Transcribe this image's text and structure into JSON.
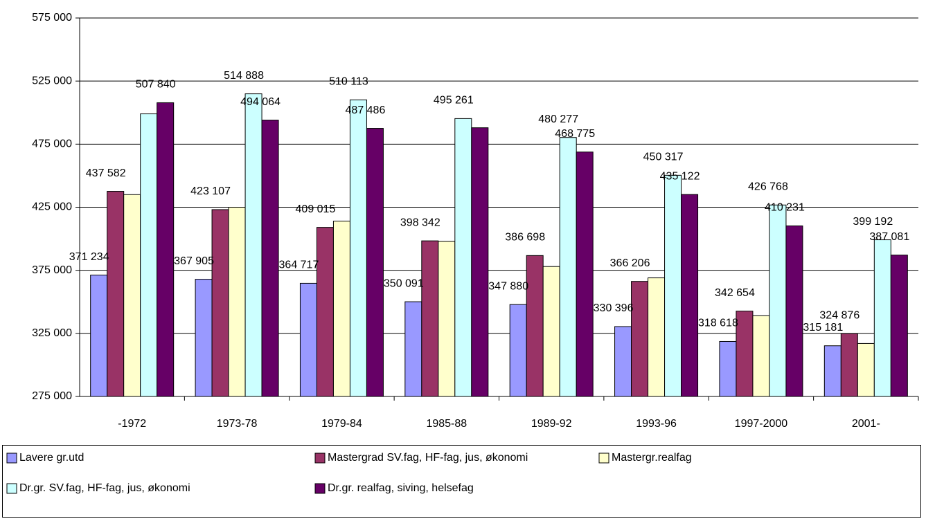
{
  "chart_data": {
    "type": "bar",
    "categories": [
      "-1972",
      "1973-78",
      "1979-84",
      "1985-88",
      "1989-92",
      "1993-96",
      "1997-2000",
      "2001-"
    ],
    "series": [
      {
        "name": "Lavere gr.utd",
        "color": "#9999ff",
        "values": [
          371234,
          367905,
          364717,
          350091,
          347880,
          330396,
          318618,
          315181
        ],
        "value_labels": [
          "371 234",
          "367 905",
          "364 717",
          "350 091",
          "347 880",
          "330 396",
          "318 618",
          "315 181"
        ]
      },
      {
        "name": "Mastergrad SV.fag, HF-fag, jus, økonomi",
        "color": "#993366",
        "values": [
          437582,
          423107,
          409015,
          398342,
          386698,
          366206,
          342654,
          324876
        ],
        "value_labels": [
          "437 582",
          "423 107",
          "409 015",
          "398 342",
          "386 698",
          "366 206",
          "342 654",
          "324 876"
        ]
      },
      {
        "name": "Mastergr.realfag",
        "color": "#ffffcc",
        "values": [
          435000,
          425000,
          414000,
          398000,
          378000,
          369000,
          339000,
          317000
        ]
      },
      {
        "name": "Dr.gr. SV.fag, HF-fag, jus, økonomi",
        "color": "#ccffff",
        "values": [
          499000,
          514888,
          510113,
          495261,
          480277,
          450317,
          426768,
          399192
        ],
        "value_labels": [
          null,
          "514 888",
          "510 113",
          "495 261",
          "480 277",
          "450 317",
          "426 768",
          "399 192"
        ]
      },
      {
        "name": "Dr.gr. realfag, siving, helsefag",
        "color": "#660066",
        "values": [
          507840,
          494064,
          487486,
          488000,
          468775,
          435122,
          410231,
          387081
        ],
        "value_labels": [
          "507 840",
          "494 064",
          "487 486",
          null,
          "468 775",
          "435 122",
          "410 231",
          "387 081"
        ]
      }
    ],
    "ylim": [
      275000,
      575000
    ],
    "yticks": [
      {
        "value": 275000,
        "label": "275 000"
      },
      {
        "value": 325000,
        "label": "325 000"
      },
      {
        "value": 375000,
        "label": "375 000"
      },
      {
        "value": 425000,
        "label": "425 000"
      },
      {
        "value": 475000,
        "label": "475 000"
      },
      {
        "value": 525000,
        "label": "525 000"
      },
      {
        "value": 575000,
        "label": "575 000"
      }
    ],
    "grid": true,
    "legend": "bottom"
  }
}
